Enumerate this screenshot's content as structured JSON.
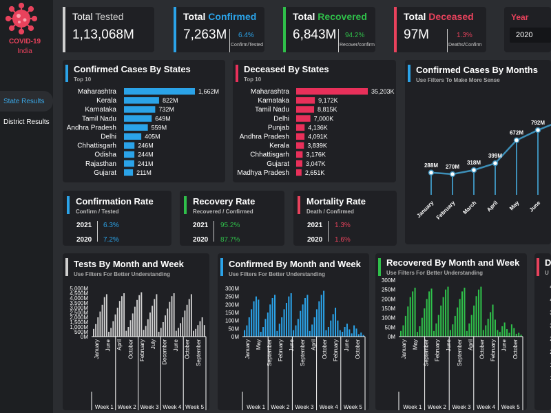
{
  "sidebar": {
    "logo_line1": "COVID-19",
    "logo_line2": "India",
    "nav": [
      "State Results",
      "District Results"
    ]
  },
  "kpis": [
    {
      "title_a": "Total ",
      "title_b": "Tested",
      "value": "1,13,068M",
      "pct": "",
      "sub": "",
      "color": "#cfcfcf"
    },
    {
      "title_a": "Total ",
      "title_b": "Confirmed",
      "value": "7,263M",
      "pct": "6.4%",
      "sub": "Confirm/Tested",
      "color": "#2ba3e8"
    },
    {
      "title_a": "Total ",
      "title_b": "Recovered",
      "value": "6,843M",
      "pct": "94.2%",
      "sub": "Recover/confirm",
      "color": "#2fbf4a"
    },
    {
      "title_a": "Total ",
      "title_b": "Deceased",
      "value": "97M",
      "pct": "1.3%",
      "sub": "Deaths/Confirm",
      "color": "#e8425c"
    }
  ],
  "year_filter": {
    "label": "Year",
    "value": "2020"
  },
  "rates": [
    {
      "title": "Confirmation Rate",
      "sub": "Confirm / Tested",
      "rows": [
        {
          "year": "2021",
          "value": "6.3%"
        },
        {
          "year": "2020",
          "value": "7.2%"
        }
      ],
      "color": "#2ba3e8"
    },
    {
      "title": "Recovery Rate",
      "sub": "Recovered / Confirmed",
      "rows": [
        {
          "year": "2021",
          "value": "95.2%"
        },
        {
          "year": "2020",
          "value": "87.7%"
        }
      ],
      "color": "#2fbf4a"
    },
    {
      "title": "Mortality Rate",
      "sub": "Death / Confirmed",
      "rows": [
        {
          "year": "2021",
          "value": "1.3%"
        },
        {
          "year": "2020",
          "value": "1.6%"
        }
      ],
      "color": "#e8425c"
    }
  ],
  "chart_data": [
    {
      "type": "bar",
      "orientation": "horizontal",
      "title": "Confirmed Cases By States",
      "subtitle": "Top 10",
      "color": "#2ba3e8",
      "categories": [
        "Maharashtra",
        "Kerala",
        "Karnataka",
        "Tamil Nadu",
        "Andhra Pradesh",
        "Delhi",
        "Chhattisgarh",
        "Odisha",
        "Rajasthan",
        "Gujarat"
      ],
      "values": [
        1662,
        822,
        732,
        649,
        559,
        405,
        246,
        244,
        241,
        211
      ],
      "labels": [
        "1,662M",
        "822M",
        "732M",
        "649M",
        "559M",
        "405M",
        "246M",
        "244M",
        "241M",
        "211M"
      ]
    },
    {
      "type": "bar",
      "orientation": "horizontal",
      "title": "Deceased By States",
      "subtitle": "Top 10",
      "color": "#e8305a",
      "categories": [
        "Maharashtra",
        "Karnataka",
        "Tamil Nadu",
        "Delhi",
        "Punjab",
        "Andhra Pradesh",
        "Kerala",
        "Chhattisgarh",
        "Gujarat",
        "Madhya Pradesh"
      ],
      "values": [
        35203,
        9172,
        8815,
        7000,
        4136,
        4091,
        3839,
        3176,
        3047,
        2651
      ],
      "labels": [
        "35,203K",
        "9,172K",
        "8,815K",
        "7,000K",
        "4,136K",
        "4,091K",
        "3,839K",
        "3,176K",
        "3,047K",
        "2,651K"
      ]
    },
    {
      "type": "line",
      "title": "Confirmed Cases By Months",
      "subtitle": "Use Filters To Make More Sense",
      "color": "#3d8fb8",
      "categories": [
        "January",
        "February",
        "March",
        "April",
        "May",
        "June"
      ],
      "values": [
        288,
        270,
        318,
        399,
        672,
        792
      ],
      "labels": [
        "288M",
        "270M",
        "318M",
        "399M",
        "672M",
        "792M"
      ]
    },
    {
      "type": "bar",
      "title": "Tests By Month and Week",
      "subtitle": "Use Filters For Better Understanding",
      "color": "#d0d0d0",
      "yticks": [
        "5,000M",
        "4,500M",
        "4,000M",
        "3,500M",
        "3,000M",
        "2,500M",
        "2,000M",
        "1,500M",
        "1,000M",
        "500M",
        "0M"
      ],
      "ymax": 5000,
      "months": [
        "January",
        "June",
        "April",
        "October",
        "February",
        "July",
        "December",
        "June",
        "October",
        "September"
      ],
      "weeks": [
        "Week 1",
        "Week 2",
        "Week 3",
        "Week 4",
        "Week 5"
      ],
      "values": [
        800,
        1300,
        2000,
        2600,
        3300,
        4100,
        4400,
        500,
        900,
        1600,
        2300,
        3000,
        3700,
        4200,
        4500,
        600,
        1000,
        1700,
        2400,
        3100,
        3800,
        4300,
        4600,
        700,
        1100,
        1800,
        2500,
        3200,
        3900,
        4400,
        500,
        900,
        1500,
        2200,
        2900,
        3600,
        4200,
        4500,
        600,
        900,
        1400,
        2000,
        2700,
        3300,
        3900,
        4400,
        600,
        800,
        1200,
        1600,
        2000,
        1200
      ]
    },
    {
      "type": "bar",
      "title": "Confirmed By Month and Week",
      "subtitle": "Use Filters For Better Understanding",
      "color": "#2ba3e8",
      "yticks": [
        "300M",
        "250M",
        "200M",
        "150M",
        "100M",
        "50M",
        "0M"
      ],
      "ymax": 300,
      "months": [
        "January",
        "May",
        "September",
        "February",
        "June",
        "September",
        "April",
        "October",
        "February",
        "June",
        "October"
      ],
      "weeks": [
        "Week 1",
        "Week 2",
        "Week 3",
        "Week 4",
        "Week 5"
      ],
      "values": [
        40,
        70,
        120,
        170,
        220,
        250,
        230,
        30,
        60,
        110,
        150,
        200,
        240,
        260,
        35,
        80,
        120,
        170,
        210,
        250,
        270,
        40,
        70,
        110,
        160,
        200,
        240,
        260,
        35,
        75,
        120,
        170,
        220,
        260,
        285,
        40,
        60,
        100,
        140,
        180,
        100,
        40,
        30,
        60,
        80,
        45,
        20,
        70,
        50,
        15,
        25,
        10
      ]
    },
    {
      "type": "bar",
      "title": "Recovered By Month and Week",
      "subtitle": "Use Filters For Better Understanding",
      "color": "#2fbf4a",
      "yticks": [
        "300M",
        "250M",
        "200M",
        "150M",
        "100M",
        "50M",
        "0M"
      ],
      "ymax": 300,
      "months": [
        "January",
        "May",
        "September",
        "February",
        "June",
        "September",
        "April",
        "October",
        "February",
        "June",
        "October"
      ],
      "weeks": [
        "Week 1",
        "Week 2",
        "Week 3",
        "Week 4",
        "Week 5"
      ],
      "values": [
        30,
        60,
        110,
        160,
        210,
        240,
        260,
        25,
        55,
        100,
        150,
        200,
        240,
        255,
        30,
        70,
        115,
        165,
        210,
        250,
        265,
        35,
        65,
        110,
        155,
        200,
        240,
        260,
        30,
        70,
        115,
        165,
        215,
        250,
        265,
        35,
        60,
        95,
        130,
        170,
        90,
        35,
        25,
        55,
        75,
        40,
        20,
        65,
        45,
        15,
        20,
        10
      ]
    },
    {
      "type": "bar",
      "title": "D",
      "subtitle": "U",
      "color": "#e8425c",
      "yticks": [
        "4,50",
        "4,00",
        "3,50",
        "3,00",
        "2,50",
        "2,00",
        "1,50",
        "1,00",
        "50"
      ],
      "values": []
    }
  ]
}
